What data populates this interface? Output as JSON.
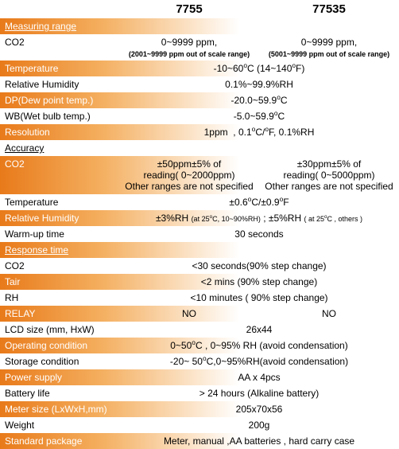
{
  "colors": {
    "gradient_start": "#e87a1a",
    "gradient_mid": "#f4ae5e",
    "gradient_end": "#ffffff",
    "white": "#ffffff",
    "black": "#000000"
  },
  "header": {
    "col_a": "7755",
    "col_b": "77535"
  },
  "sections": {
    "measuring_range": "Measuring range",
    "accuracy": "Accuracy",
    "response_time": "Response time"
  },
  "rows": {
    "co2": {
      "label": "CO2",
      "a": "0~9999 ppm,",
      "b": "0~9999 ppm,",
      "note_a": "(2001~9999 ppm out of scale range)",
      "note_b": "(5001~9999 ppm out of scale range)"
    },
    "temperature": {
      "label": "Temperature",
      "value_html": "-10~60<sup>o</sup>C (14~140<sup>o</sup>F)"
    },
    "rh": {
      "label": "Relative Humidity",
      "value": "0.1%~99.9%RH"
    },
    "dp": {
      "label": "DP(Dew point temp.)",
      "value_html": "-20.0~59.9<sup>o</sup>C"
    },
    "wb": {
      "label": "WB(Wet bulb temp.)",
      "value_html": "-5.0~59.9<sup>o</sup>C"
    },
    "resolution": {
      "label": "Resolution",
      "value_html": "1ppm&nbsp;&nbsp;, 0.1<sup>o</sup>C/<sup>o</sup>F, 0.1%RH"
    },
    "acc_co2": {
      "label": "CO2",
      "a_l1": "±50ppm±5% of",
      "a_l2": "reading( 0~2000ppm)",
      "a_l3": "Other ranges are not specified",
      "b_l1": "±30ppm±5% of",
      "b_l2": "reading( 0~5000ppm)",
      "b_l3": "Other ranges are not specified"
    },
    "acc_temp": {
      "label": "Temperature",
      "value_html": "±0.6<sup>o</sup>C/±0.9<sup>o</sup>F"
    },
    "acc_rh": {
      "label": "Relative Humidity",
      "value_html": "±3%RH <span class='sub2'>(at 25<sup>o</sup>C, 10~90%RH)</span> ; ±5%RH <span class='sub2'>( at 25<sup>o</sup>C , others )</span>"
    },
    "warmup": {
      "label": "Warm-up time",
      "value": "30 seconds"
    },
    "rt_co2": {
      "label": "CO2",
      "value": "<30 seconds(90% step change)"
    },
    "rt_tair": {
      "label": "Tair",
      "value": "<2 mins (90% step change)"
    },
    "rt_rh": {
      "label": "RH",
      "value": "<10 minutes ( 90% step change)"
    },
    "relay": {
      "label": "RELAY",
      "a": "NO",
      "b": "NO"
    },
    "lcd": {
      "label": "LCD size (mm, HxW)",
      "value": "26x44"
    },
    "op_cond": {
      "label": "Operating condition",
      "value_html": "0~50<sup>o</sup>C , 0~95% RH (avoid condensation)"
    },
    "st_cond": {
      "label": "Storage condition",
      "value_html": "-20~ 50<sup>o</sup>C,0~95%RH(avoid condensation)"
    },
    "power": {
      "label": "Power supply",
      "value": "AA x 4pcs"
    },
    "battery": {
      "label": "Battery life",
      "value": "> 24 hours (Alkaline battery)"
    },
    "meter_size": {
      "label": "Meter size (LxWxH,mm)",
      "value": "205x70x56"
    },
    "weight": {
      "label": "Weight",
      "value": "200g"
    },
    "package": {
      "label": "Standard package",
      "value": "Meter, manual ,AA batteries , hard carry case"
    }
  }
}
